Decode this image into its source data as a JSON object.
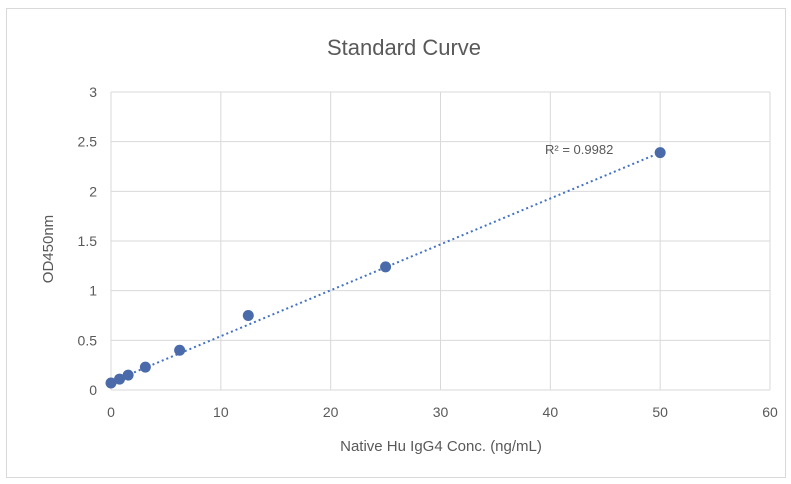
{
  "chart_data": {
    "type": "scatter",
    "title": "Standard Curve",
    "xlabel": "Native Hu IgG4 Conc. (ng/mL)",
    "ylabel": "OD450nm",
    "xlim": [
      0,
      60
    ],
    "ylim": [
      0,
      3
    ],
    "xticks": [
      "0",
      "10",
      "20",
      "30",
      "40",
      "50",
      "60"
    ],
    "yticks": [
      "0",
      "0.5",
      "1",
      "1.5",
      "2",
      "2.5",
      "3"
    ],
    "grid": true,
    "legend": "none",
    "series": [
      {
        "x": [
          0,
          0.78,
          1.56,
          3.13,
          6.25,
          12.5,
          25,
          50
        ],
        "y": [
          0.07,
          0.11,
          0.15,
          0.23,
          0.4,
          0.75,
          1.24,
          2.39
        ]
      }
    ],
    "trendline": {
      "type": "linear",
      "style": "dotted",
      "x_range": [
        0,
        50
      ],
      "y_range": [
        0.08,
        2.39
      ]
    },
    "annotation": "R² = 0.9982",
    "colors": {
      "marker": "#4a6aaa",
      "trendline": "#4472c4",
      "grid": "#d9d9d9",
      "text": "#595959"
    }
  }
}
